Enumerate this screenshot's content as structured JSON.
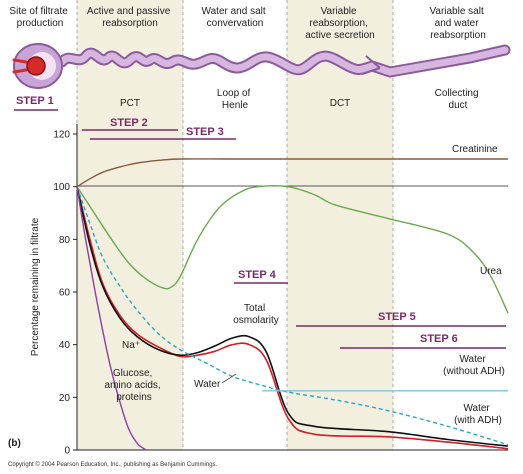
{
  "headers": [
    {
      "lines": [
        "Site of filtrate",
        "production"
      ]
    },
    {
      "lines": [
        "Active and passive",
        "reabsorption"
      ]
    },
    {
      "lines": [
        "Water and salt",
        "convervation"
      ]
    },
    {
      "lines": [
        "Variable",
        "reabsorption,",
        "active secretion"
      ]
    },
    {
      "lines": [
        "Variable salt",
        "and water",
        "reabsorption"
      ]
    }
  ],
  "segments": [
    {
      "lines": [
        "PCT"
      ]
    },
    {
      "lines": [
        "Loop of",
        "Henle"
      ]
    },
    {
      "lines": [
        "DCT"
      ]
    },
    {
      "lines": [
        "Collecting",
        "duct"
      ]
    }
  ],
  "steps": [
    "STEP 1",
    "STEP 2",
    "STEP 3",
    "STEP 4",
    "STEP 5",
    "STEP 6"
  ],
  "panel_label": "(b)",
  "copyright": "Copyright © 2004 Pearson Education, Inc., publishing as Benjamin Cummings.",
  "colors": {
    "band": "#f3efdf",
    "creatinine": "#8a5a3a",
    "urea": "#6aa84f",
    "na": "#d11f2a",
    "osm": "#111111",
    "water_adh": "#2aa7c4",
    "water_noadh": "#74c7dc",
    "glucose": "#8b3fa0",
    "step": "#7a2a6a",
    "tubule": "#b888c8"
  },
  "chart_data": {
    "type": "line",
    "ylabel": "Percentage remaining in filtrate",
    "yticks": [
      0,
      20,
      40,
      60,
      80,
      100,
      120
    ],
    "ylim": [
      0,
      120
    ],
    "xlim": [
      0,
      100
    ],
    "region_bounds": [
      0,
      24,
      49,
      72,
      100
    ],
    "series": [
      {
        "name": "Creatinine",
        "color_key": "creatinine",
        "x": [
          0,
          3,
          6,
          10,
          14,
          19,
          24,
          35,
          49,
          72,
          100
        ],
        "y": [
          100,
          103,
          105.5,
          107.5,
          109,
          110,
          110.5,
          110.5,
          110.5,
          110.5,
          110.5
        ]
      },
      {
        "name": "Urea",
        "color_key": "urea",
        "x": [
          0,
          4,
          8,
          12,
          16,
          20,
          22,
          24,
          28,
          33,
          38,
          42,
          49,
          55,
          60,
          72,
          86,
          92,
          96,
          100
        ],
        "y": [
          100,
          90,
          80,
          71,
          65,
          61.5,
          62,
          66,
          80,
          92,
          98,
          100,
          100,
          97,
          93,
          88,
          82,
          75,
          66,
          52
        ]
      },
      {
        "name": "Na⁺",
        "color_key": "na",
        "x": [
          0,
          3,
          6,
          10,
          14,
          19,
          24,
          28,
          32,
          36,
          40,
          44,
          49,
          55,
          72,
          86,
          100
        ],
        "y": [
          100,
          80,
          63,
          51,
          44,
          39,
          35.5,
          36,
          37.5,
          40,
          40,
          34,
          12,
          6,
          5,
          3,
          0.5
        ]
      },
      {
        "name": "Total osmolarity",
        "color_key": "osm",
        "x": [
          0,
          3,
          6,
          10,
          14,
          19,
          24,
          28,
          32,
          36,
          40,
          44,
          49,
          55,
          72,
          86,
          100
        ],
        "y": [
          100,
          78,
          62,
          50,
          43,
          38,
          36,
          37,
          39.5,
          42.5,
          43,
          37,
          14,
          9,
          7,
          4,
          1.5
        ]
      },
      {
        "name": "Water (with ADH)",
        "color_key": "water_adh",
        "x": [
          0,
          3,
          6,
          10,
          14,
          19,
          24,
          30,
          36,
          43,
          49,
          60,
          72,
          86,
          100
        ],
        "y": [
          100,
          86,
          73,
          62,
          53,
          44,
          38,
          33,
          28,
          24.5,
          22,
          19,
          15,
          9,
          2
        ]
      },
      {
        "name": "Water (without ADH)",
        "color_key": "water_noadh",
        "x": [
          43,
          49,
          60,
          72,
          86,
          100
        ],
        "y": [
          22.5,
          22.5,
          22.5,
          22.5,
          22.5,
          22.5
        ]
      },
      {
        "name": "Glucose, amino acids, proteins",
        "color_key": "glucose",
        "x": [
          0,
          2,
          4,
          6,
          8,
          10,
          12,
          14,
          16
        ],
        "y": [
          100,
          80,
          62,
          45,
          30,
          18,
          8,
          2.5,
          0
        ]
      }
    ],
    "labels": {
      "creatinine": "Creatinine",
      "urea": "Urea",
      "na": "Na⁺",
      "osm": [
        "Total",
        "osmolarity"
      ],
      "glucose": [
        "Glucose,",
        "amino acids,",
        "proteins"
      ],
      "water": "Water",
      "water_noadh": [
        "Water",
        "(without ADH)"
      ],
      "water_adh": [
        "Water",
        "(with ADH)"
      ]
    }
  }
}
